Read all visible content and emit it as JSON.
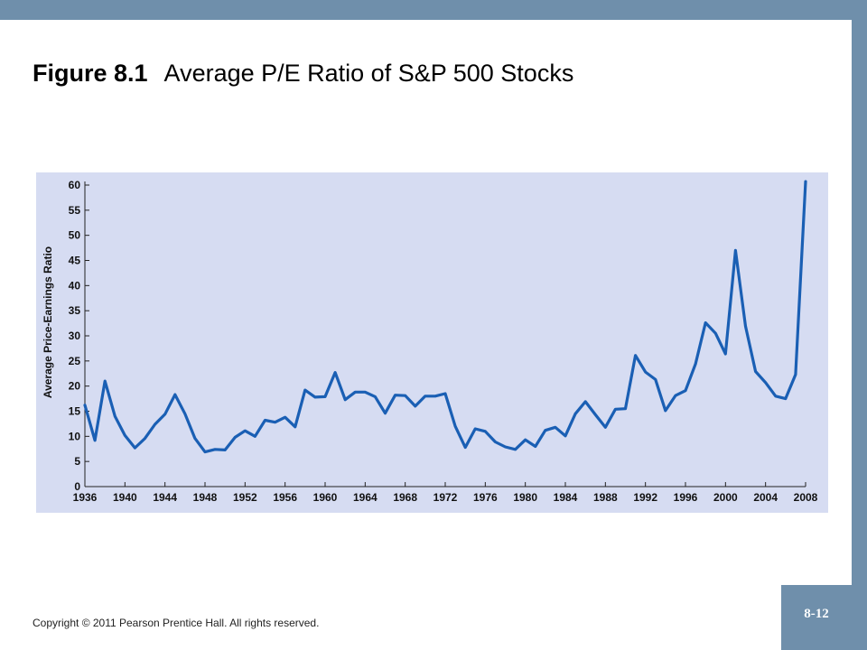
{
  "slide": {
    "figure_number": "Figure 8.1",
    "title": "Average P/E Ratio of S&P 500 Stocks",
    "footer": "Copyright © 2011 Pearson Prentice Hall.  All rights reserved.",
    "page_number": "8-12"
  },
  "colors": {
    "frame": "#6f8fab",
    "plot_background": "#d6dcf2",
    "line": "#1a5fb4"
  },
  "chart_data": {
    "type": "line",
    "title": "",
    "xlabel": "",
    "ylabel": "Average Price-Earnings Ratio",
    "xlim": [
      1936,
      2008
    ],
    "ylim": [
      0,
      60
    ],
    "xticks": [
      1936,
      1940,
      1944,
      1948,
      1952,
      1956,
      1960,
      1964,
      1968,
      1972,
      1976,
      1980,
      1984,
      1988,
      1992,
      1996,
      2000,
      2004,
      2008
    ],
    "yticks": [
      0,
      5,
      10,
      15,
      20,
      25,
      30,
      35,
      40,
      45,
      50,
      55,
      60
    ],
    "grid": false,
    "series": [
      {
        "x": [
          1936,
          1937,
          1938,
          1939,
          1940,
          1941,
          1942,
          1943,
          1944,
          1945,
          1946,
          1947,
          1948,
          1949,
          1950,
          1951,
          1952,
          1953,
          1954,
          1955,
          1956,
          1957,
          1958,
          1959,
          1960,
          1961,
          1962,
          1963,
          1964,
          1965,
          1966,
          1967,
          1968,
          1969,
          1970,
          1971,
          1972,
          1973,
          1974,
          1975,
          1976,
          1977,
          1978,
          1979,
          1980,
          1981,
          1982,
          1983,
          1984,
          1985,
          1986,
          1987,
          1988,
          1989,
          1990,
          1991,
          1992,
          1993,
          1994,
          1995,
          1996,
          1997,
          1998,
          1999,
          2000,
          2001,
          2002,
          2003,
          2004,
          2005,
          2006,
          2007,
          2008
        ],
        "values": [
          16.2,
          9.2,
          21.0,
          14.0,
          10.2,
          7.7,
          9.6,
          12.4,
          14.4,
          18.3,
          14.5,
          9.6,
          6.9,
          7.4,
          7.3,
          9.8,
          11.1,
          10.0,
          13.2,
          12.8,
          13.8,
          11.9,
          19.2,
          17.8,
          17.9,
          22.7,
          17.3,
          18.8,
          18.8,
          17.9,
          14.6,
          18.2,
          18.1,
          16.0,
          18.0,
          18.0,
          18.5,
          12.0,
          7.8,
          11.5,
          11.0,
          8.9,
          7.9,
          7.4,
          9.3,
          8.0,
          11.2,
          11.8,
          10.1,
          14.5,
          16.9,
          14.3,
          11.8,
          15.4,
          15.5,
          26.1,
          22.8,
          21.3,
          15.1,
          18.1,
          19.1,
          24.4,
          32.6,
          30.5,
          26.4,
          47.0,
          31.9,
          22.9,
          20.7,
          18.0,
          17.5,
          22.3,
          60.7
        ]
      }
    ]
  }
}
